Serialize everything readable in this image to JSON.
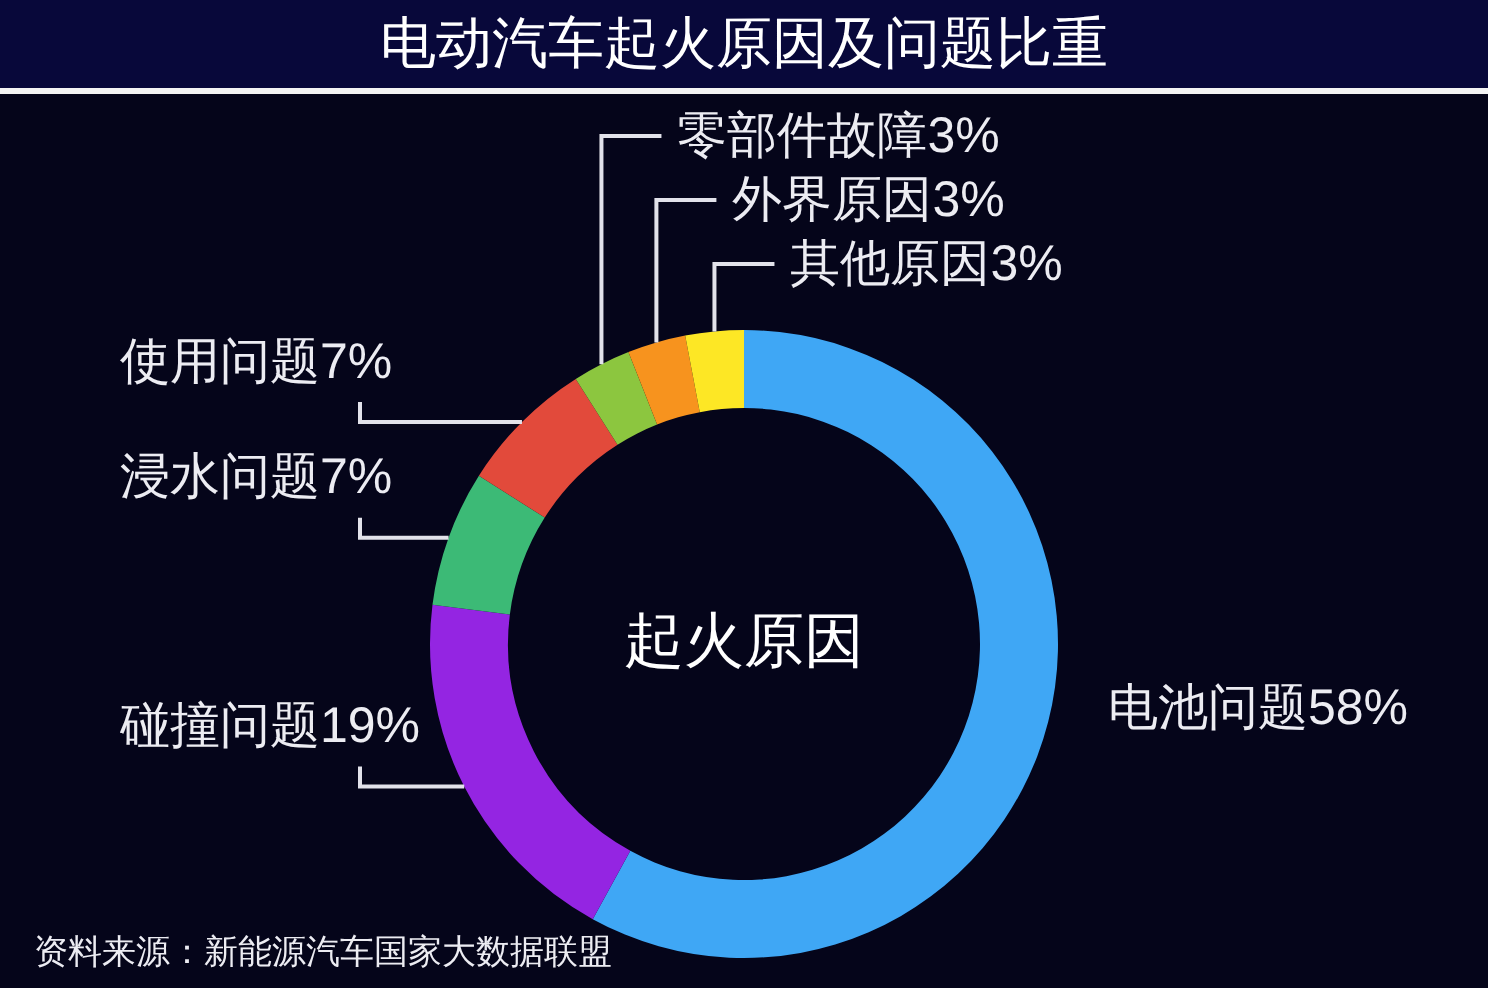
{
  "chart_data": {
    "type": "donut",
    "title": "电动汽车起火原因及问题比重",
    "categories": [
      "电池问题",
      "碰撞问题",
      "浸水问题",
      "使用问题",
      "零部件故障",
      "外界原因",
      "其他原因"
    ],
    "values": [
      58,
      19,
      7,
      7,
      3,
      3,
      3
    ],
    "colors": [
      "#3fa7f5",
      "#9425e2",
      "#3cba76",
      "#e24a3b",
      "#8cc63f",
      "#f7931e",
      "#fde725"
    ],
    "value_labels": [
      "58%",
      "19%",
      "7%",
      "7%",
      "3%",
      "3%",
      "3%"
    ],
    "annotations": [
      "起火原因",
      "资料来源：新能源汽车国家大数据联盟"
    ]
  }
}
